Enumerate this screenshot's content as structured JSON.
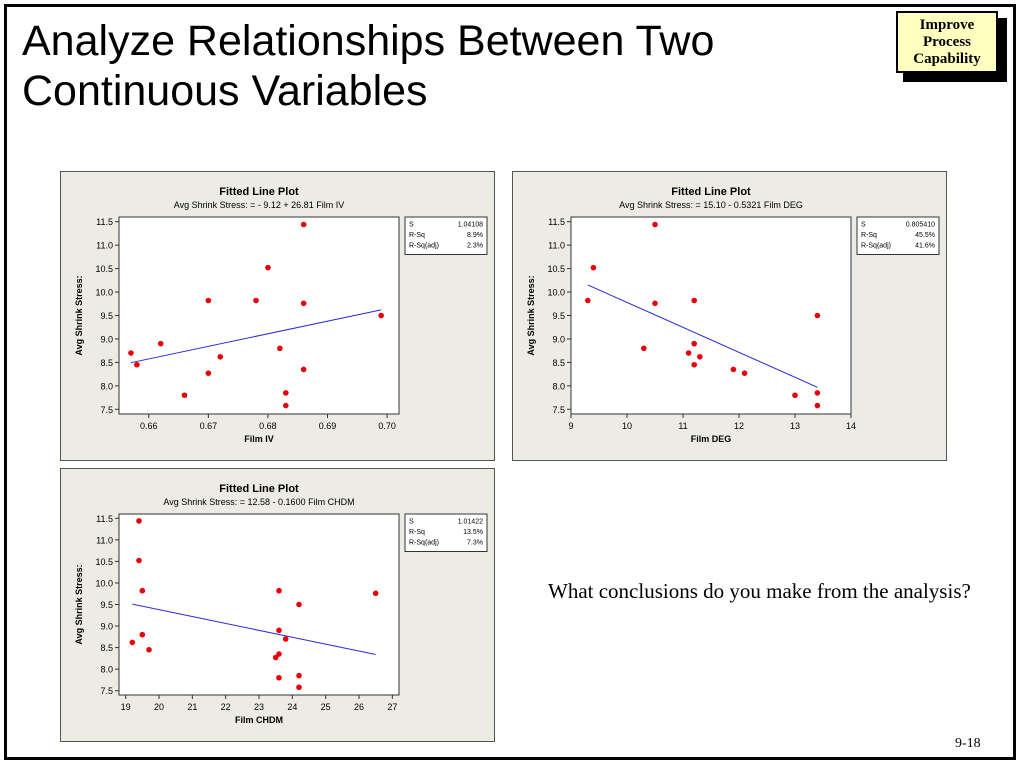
{
  "slide": {
    "title_line1": "Analyze Relationships Between Two",
    "title_line2": "Continuous Variables",
    "badge": [
      "Improve",
      "Process",
      "Capability"
    ],
    "question": "What conclusions do you make from the analysis?",
    "page_number": "9-18"
  },
  "chart_data": [
    {
      "type": "scatter",
      "title": "Fitted Line Plot",
      "subtitle": "Avg Shrink Stress: =  - 9.12 + 26.81 Film IV",
      "xlabel": "Film IV",
      "ylabel": "Avg Shrink Stress:",
      "xlim": [
        0.655,
        0.702
      ],
      "ylim": [
        7.4,
        11.6
      ],
      "xticks": [
        0.66,
        0.67,
        0.68,
        0.69,
        0.7
      ],
      "xtick_labels": [
        "0.66",
        "0.67",
        "0.68",
        "0.69",
        "0.70"
      ],
      "yticks": [
        7.5,
        8.0,
        8.5,
        9.0,
        9.5,
        10.0,
        10.5,
        11.0,
        11.5
      ],
      "ytick_labels": [
        "7.5",
        "8.0",
        "8.5",
        "9.0",
        "9.5",
        "10.0",
        "10.5",
        "11.0",
        "11.5"
      ],
      "fit": {
        "intercept": -9.12,
        "slope": 26.81,
        "x_range": [
          0.657,
          0.699
        ]
      },
      "stats": [
        [
          "S",
          "1.04108"
        ],
        [
          "R-Sq",
          "8.9%"
        ],
        [
          "R-Sq(adj)",
          "2.3%"
        ]
      ],
      "point_color": "#e8000b",
      "line_color": "#2b2bd6",
      "points": [
        {
          "x": 0.657,
          "y": 8.7
        },
        {
          "x": 0.658,
          "y": 8.45
        },
        {
          "x": 0.662,
          "y": 8.9
        },
        {
          "x": 0.666,
          "y": 7.8
        },
        {
          "x": 0.67,
          "y": 9.82
        },
        {
          "x": 0.67,
          "y": 8.27
        },
        {
          "x": 0.672,
          "y": 8.62
        },
        {
          "x": 0.678,
          "y": 9.82
        },
        {
          "x": 0.68,
          "y": 10.52
        },
        {
          "x": 0.682,
          "y": 8.8
        },
        {
          "x": 0.683,
          "y": 7.85
        },
        {
          "x": 0.683,
          "y": 7.58
        },
        {
          "x": 0.686,
          "y": 11.44
        },
        {
          "x": 0.686,
          "y": 9.76
        },
        {
          "x": 0.686,
          "y": 8.35
        },
        {
          "x": 0.699,
          "y": 9.5
        }
      ]
    },
    {
      "type": "scatter",
      "title": "Fitted Line Plot",
      "subtitle": "Avg Shrink Stress: =  15.10 - 0.5321 Film DEG",
      "xlabel": "Film DEG",
      "ylabel": "Avg Shrink Stress:",
      "xlim": [
        9.0,
        14.0
      ],
      "ylim": [
        7.4,
        11.6
      ],
      "xticks": [
        9,
        10,
        11,
        12,
        13,
        14
      ],
      "xtick_labels": [
        "9",
        "10",
        "11",
        "12",
        "13",
        "14"
      ],
      "yticks": [
        7.5,
        8.0,
        8.5,
        9.0,
        9.5,
        10.0,
        10.5,
        11.0,
        11.5
      ],
      "ytick_labels": [
        "7.5",
        "8.0",
        "8.5",
        "9.0",
        "9.5",
        "10.0",
        "10.5",
        "11.0",
        "11.5"
      ],
      "fit": {
        "intercept": 15.1,
        "slope": -0.5321,
        "x_range": [
          9.3,
          13.4
        ]
      },
      "stats": [
        [
          "S",
          "0.805410"
        ],
        [
          "R-Sq",
          "45.5%"
        ],
        [
          "R-Sq(adj)",
          "41.6%"
        ]
      ],
      "point_color": "#e8000b",
      "line_color": "#2b2bd6",
      "points": [
        {
          "x": 9.3,
          "y": 9.82
        },
        {
          "x": 9.4,
          "y": 10.52
        },
        {
          "x": 10.3,
          "y": 8.8
        },
        {
          "x": 10.5,
          "y": 11.44
        },
        {
          "x": 10.5,
          "y": 9.76
        },
        {
          "x": 11.1,
          "y": 8.7
        },
        {
          "x": 11.2,
          "y": 9.82
        },
        {
          "x": 11.2,
          "y": 8.9
        },
        {
          "x": 11.2,
          "y": 8.45
        },
        {
          "x": 11.3,
          "y": 8.62
        },
        {
          "x": 11.9,
          "y": 8.35
        },
        {
          "x": 12.1,
          "y": 8.27
        },
        {
          "x": 13.0,
          "y": 7.8
        },
        {
          "x": 13.4,
          "y": 9.5
        },
        {
          "x": 13.4,
          "y": 7.85
        },
        {
          "x": 13.4,
          "y": 7.58
        }
      ]
    },
    {
      "type": "scatter",
      "title": "Fitted Line Plot",
      "subtitle": "Avg Shrink Stress: =  12.58 - 0.1600 Film CHDM",
      "xlabel": "Film CHDM",
      "ylabel": "Avg Shrink Stress:",
      "xlim": [
        18.8,
        27.2
      ],
      "ylim": [
        7.4,
        11.6
      ],
      "xticks": [
        19,
        20,
        21,
        22,
        23,
        24,
        25,
        26,
        27
      ],
      "xtick_labels": [
        "19",
        "20",
        "21",
        "22",
        "23",
        "24",
        "25",
        "26",
        "27"
      ],
      "yticks": [
        7.5,
        8.0,
        8.5,
        9.0,
        9.5,
        10.0,
        10.5,
        11.0,
        11.5
      ],
      "ytick_labels": [
        "7.5",
        "8.0",
        "8.5",
        "9.0",
        "9.5",
        "10.0",
        "10.5",
        "11.0",
        "11.5"
      ],
      "fit": {
        "intercept": 12.58,
        "slope": -0.16,
        "x_range": [
          19.2,
          26.5
        ]
      },
      "stats": [
        [
          "S",
          "1.01422"
        ],
        [
          "R-Sq",
          "13.5%"
        ],
        [
          "R-Sq(adj)",
          "7.3%"
        ]
      ],
      "point_color": "#e8000b",
      "line_color": "#2b2bd6",
      "points": [
        {
          "x": 19.2,
          "y": 8.62
        },
        {
          "x": 19.4,
          "y": 11.44
        },
        {
          "x": 19.4,
          "y": 10.52
        },
        {
          "x": 19.5,
          "y": 9.82
        },
        {
          "x": 19.5,
          "y": 8.8
        },
        {
          "x": 19.7,
          "y": 8.45
        },
        {
          "x": 23.5,
          "y": 8.27
        },
        {
          "x": 23.6,
          "y": 9.82
        },
        {
          "x": 23.6,
          "y": 8.9
        },
        {
          "x": 23.6,
          "y": 8.35
        },
        {
          "x": 23.6,
          "y": 7.8
        },
        {
          "x": 23.8,
          "y": 8.7
        },
        {
          "x": 24.2,
          "y": 9.5
        },
        {
          "x": 24.2,
          "y": 7.85
        },
        {
          "x": 24.2,
          "y": 7.58
        },
        {
          "x": 26.5,
          "y": 9.76
        }
      ]
    }
  ]
}
